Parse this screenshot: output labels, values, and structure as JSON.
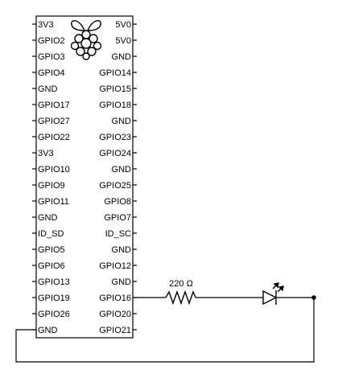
{
  "board": {
    "left_pins": [
      "3V3",
      "GPIO2",
      "GPIO3",
      "GPIO4",
      "GND",
      "GPIO17",
      "GPIO27",
      "GPIO22",
      "3V3",
      "GPIO10",
      "GPIO9",
      "GPIO11",
      "GND",
      "ID_SD",
      "GPIO5",
      "GPIO6",
      "GPIO13",
      "GPIO19",
      "GPIO26",
      "GND"
    ],
    "right_pins": [
      "5V0",
      "5V0",
      "GND",
      "GPIO14",
      "GPIO15",
      "GPIO18",
      "GND",
      "GPIO23",
      "GPIO24",
      "GND",
      "GPIO25",
      "GPIO8",
      "GPIO7",
      "ID_SC",
      "GND",
      "GPIO12",
      "GND",
      "GPIO16",
      "GPIO20",
      "GPIO21"
    ],
    "logo_icon": "raspberry-pi-logo-icon"
  },
  "resistor": {
    "label": "220 Ω",
    "icon": "resistor-icon"
  },
  "led": {
    "icon": "led-icon"
  },
  "colors": {
    "line": "#000000",
    "background": "#ffffff"
  }
}
